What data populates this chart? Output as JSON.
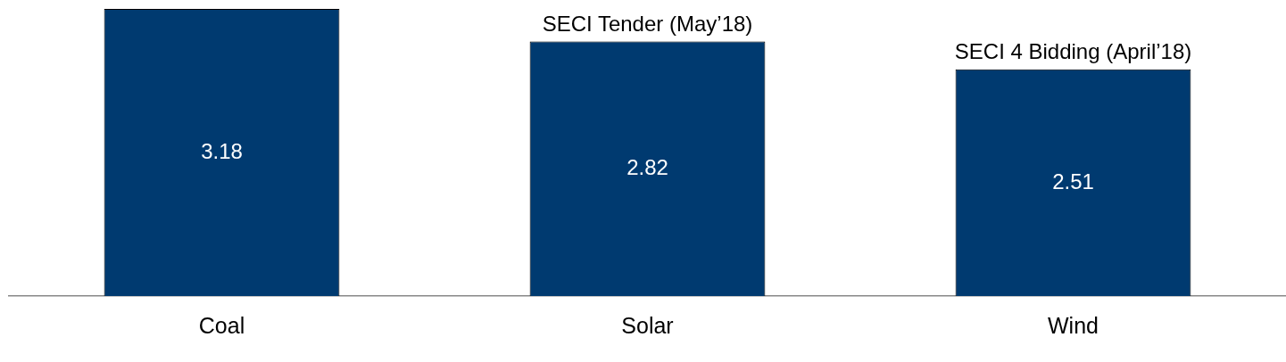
{
  "chart_data": {
    "type": "bar",
    "categories": [
      "Coal",
      "Solar",
      "Wind"
    ],
    "values": [
      3.18,
      2.82,
      2.51
    ],
    "color": "#003a70",
    "ylim": [
      0,
      3.2
    ],
    "data_labels": true,
    "grid": false,
    "legend": false,
    "tick_labels": "x",
    "annotations": [
      {
        "text": "SECI Tender (May’18)",
        "x": "Solar",
        "y": 2.82
      },
      {
        "text": "SECI 4 Bidding (April’18)",
        "x": "Wind",
        "y": 2.51
      }
    ]
  }
}
